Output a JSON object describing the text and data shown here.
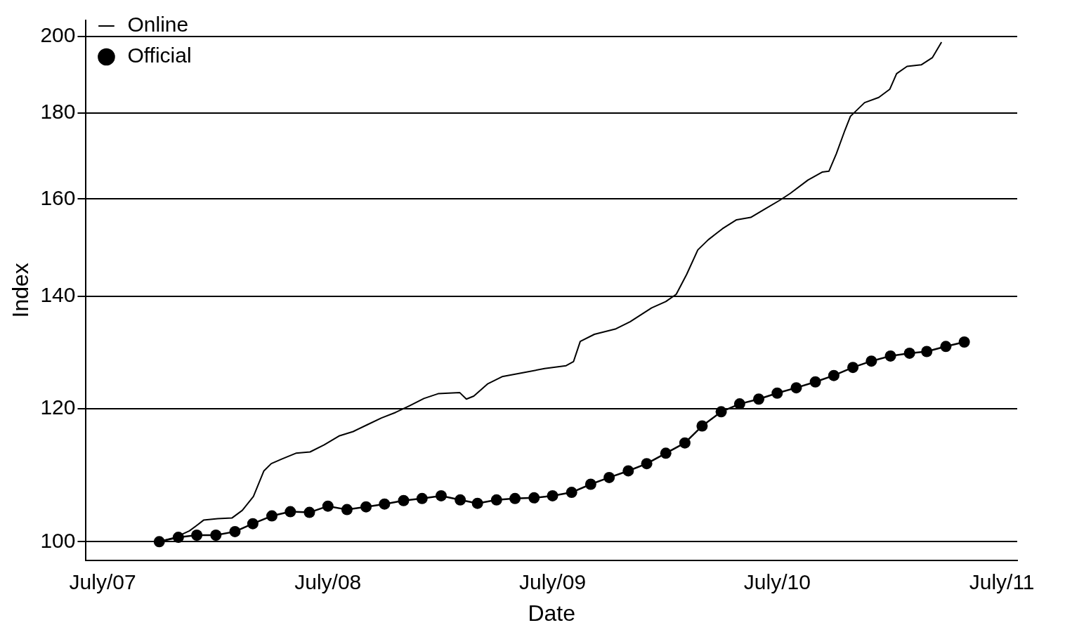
{
  "chart_data": {
    "type": "line",
    "xlabel": "Date",
    "ylabel": "Index",
    "log": "y",
    "grid": "y",
    "legend": "top left",
    "xlim": [
      "2007-06-04",
      "2011-07-26"
    ],
    "ylim": [
      97.5,
      204.4
    ],
    "xticks": [
      {
        "value": "2007-07",
        "label": "July/07"
      },
      {
        "value": "2008-07",
        "label": "July/08"
      },
      {
        "value": "2009-07",
        "label": "July/09"
      },
      {
        "value": "2010-07",
        "label": "July/10"
      },
      {
        "value": "2011-07",
        "label": "July/11"
      }
    ],
    "yticks": [
      100,
      120,
      140,
      160,
      180,
      200
    ],
    "series": [
      {
        "name": "Online",
        "color": "#000000",
        "marker": "none",
        "x": [
          "2007-09-30",
          "2007-10-27",
          "2007-11-19",
          "2007-11-30",
          "2007-12-12",
          "2008-01-04",
          "2008-01-27",
          "2008-02-13",
          "2008-03-02",
          "2008-03-19",
          "2008-03-31",
          "2008-04-17",
          "2008-05-10",
          "2008-06-02",
          "2008-06-25",
          "2008-07-19",
          "2008-08-11",
          "2008-09-03",
          "2008-09-26",
          "2008-10-19",
          "2008-11-11",
          "2008-12-04",
          "2008-12-27",
          "2009-01-31",
          "2009-02-11",
          "2009-02-23",
          "2009-03-18",
          "2009-04-10",
          "2009-05-15",
          "2009-06-18",
          "2009-07-23",
          "2009-08-04",
          "2009-08-15",
          "2009-09-07",
          "2009-10-12",
          "2009-11-04",
          "2009-12-09",
          "2010-01-01",
          "2010-01-18",
          "2010-02-04",
          "2010-02-22",
          "2010-03-11",
          "2010-04-03",
          "2010-04-26",
          "2010-05-19",
          "2010-06-11",
          "2010-07-05",
          "2010-07-22",
          "2010-08-20",
          "2010-09-12",
          "2010-09-23",
          "2010-10-05",
          "2010-10-19",
          "2010-10-28",
          "2010-11-20",
          "2010-12-13",
          "2010-12-31",
          "2011-01-11",
          "2011-01-28",
          "2011-02-20",
          "2011-03-10",
          "2011-03-25"
        ],
        "values": [
          100,
          100.6,
          101.5,
          102.2,
          103.0,
          103.2,
          103.3,
          104.4,
          106.4,
          110.2,
          111.3,
          112.0,
          112.9,
          113.1,
          114.2,
          115.6,
          116.3,
          117.4,
          118.5,
          119.4,
          120.5,
          121.7,
          122.5,
          122.7,
          121.6,
          122.1,
          124.2,
          125.4,
          126.1,
          126.8,
          127.3,
          128.0,
          131.6,
          132.9,
          133.9,
          135.2,
          137.8,
          139.0,
          140.4,
          144.3,
          149.2,
          151.3,
          153.6,
          155.5,
          156.0,
          157.8,
          159.7,
          161.2,
          164.2,
          166.0,
          166.2,
          170.2,
          175.8,
          179.2,
          182.6,
          183.9,
          186.0,
          190.0,
          191.9,
          192.3,
          194.2,
          198.4
        ]
      },
      {
        "name": "Official",
        "color": "#000000",
        "marker": "circle",
        "x": [
          "2007-10",
          "2007-11",
          "2007-12",
          "2008-01",
          "2008-02",
          "2008-03",
          "2008-04",
          "2008-05",
          "2008-06",
          "2008-07",
          "2008-08",
          "2008-09",
          "2008-10",
          "2008-11",
          "2008-12",
          "2009-01",
          "2009-02",
          "2009-03",
          "2009-04",
          "2009-05",
          "2009-06",
          "2009-07",
          "2009-08",
          "2009-09",
          "2009-10",
          "2009-11",
          "2009-12",
          "2010-01",
          "2010-02",
          "2010-03",
          "2010-04",
          "2010-05",
          "2010-06",
          "2010-07",
          "2010-08",
          "2010-09",
          "2010-10",
          "2010-11",
          "2010-12",
          "2011-01",
          "2011-02",
          "2011-03",
          "2011-04",
          "2011-05"
        ],
        "values": [
          100,
          100.6,
          100.9,
          100.9,
          101.4,
          102.5,
          103.6,
          104.2,
          104.1,
          105.0,
          104.5,
          104.9,
          105.3,
          105.8,
          106.1,
          106.5,
          105.9,
          105.4,
          105.9,
          106.1,
          106.2,
          106.5,
          107.0,
          108.2,
          109.2,
          110.2,
          111.3,
          112.9,
          114.5,
          117.2,
          119.5,
          120.8,
          121.6,
          122.6,
          123.5,
          124.5,
          125.6,
          127.0,
          128.1,
          129.0,
          129.5,
          129.8,
          130.7,
          131.5
        ]
      }
    ]
  }
}
